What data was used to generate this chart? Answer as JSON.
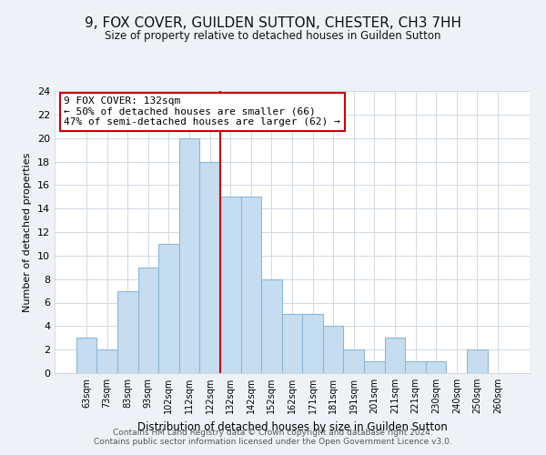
{
  "title": "9, FOX COVER, GUILDEN SUTTON, CHESTER, CH3 7HH",
  "subtitle": "Size of property relative to detached houses in Guilden Sutton",
  "xlabel": "Distribution of detached houses by size in Guilden Sutton",
  "ylabel": "Number of detached properties",
  "bin_labels": [
    "63sqm",
    "73sqm",
    "83sqm",
    "93sqm",
    "102sqm",
    "112sqm",
    "122sqm",
    "132sqm",
    "142sqm",
    "152sqm",
    "162sqm",
    "171sqm",
    "181sqm",
    "191sqm",
    "201sqm",
    "211sqm",
    "221sqm",
    "230sqm",
    "240sqm",
    "250sqm",
    "260sqm"
  ],
  "bar_values": [
    3,
    2,
    7,
    9,
    11,
    20,
    18,
    15,
    15,
    8,
    5,
    5,
    4,
    2,
    1,
    3,
    1,
    1,
    0,
    2,
    0
  ],
  "bar_color": "#c5ddef",
  "bar_edge_color": "#8cb8d8",
  "vline_color": "#cc0000",
  "ylim": [
    0,
    24
  ],
  "yticks": [
    0,
    2,
    4,
    6,
    8,
    10,
    12,
    14,
    16,
    18,
    20,
    22,
    24
  ],
  "annotation_title": "9 FOX COVER: 132sqm",
  "annotation_line1": "← 50% of detached houses are smaller (66)",
  "annotation_line2": "47% of semi-detached houses are larger (62) →",
  "annotation_box_color": "#ffffff",
  "annotation_box_edge": "#cc0000",
  "footer1": "Contains HM Land Registry data © Crown copyright and database right 2024.",
  "footer2": "Contains public sector information licensed under the Open Government Licence v3.0.",
  "bg_color": "#eef2f7",
  "plot_bg_color": "#ffffff",
  "grid_color": "#d0d8e4"
}
